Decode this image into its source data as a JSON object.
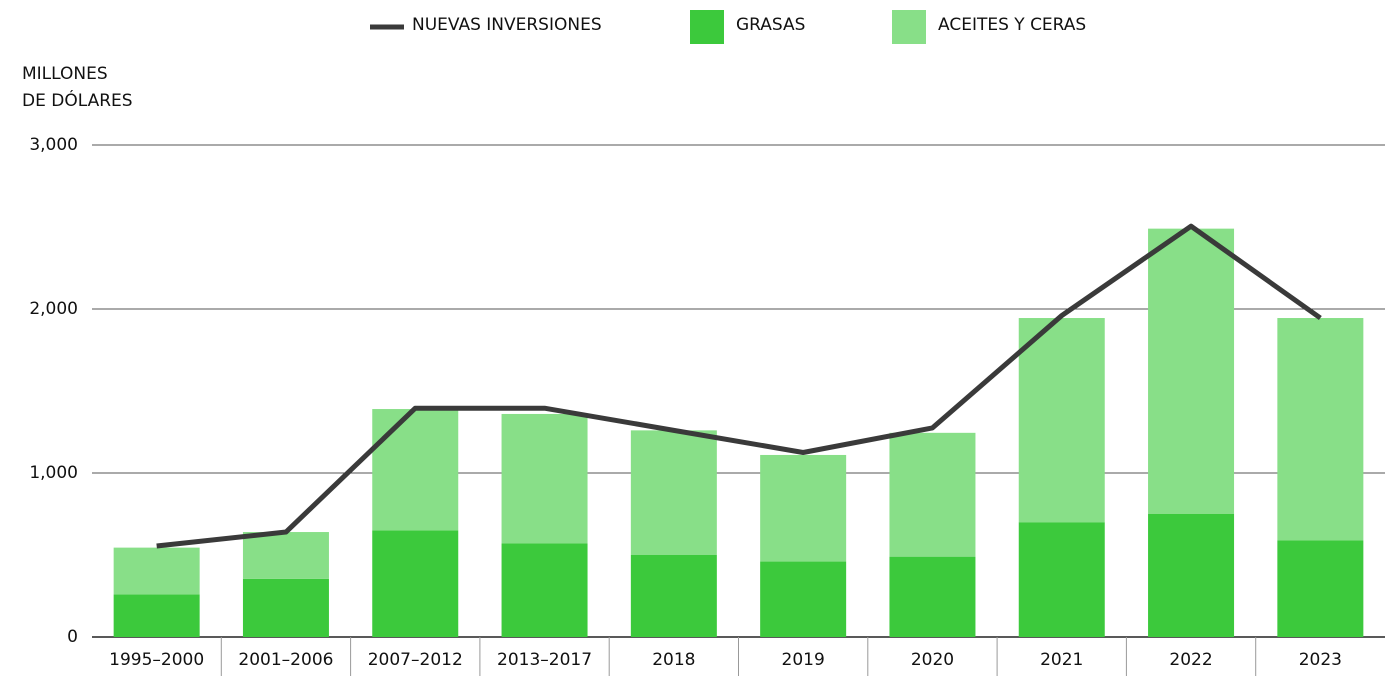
{
  "chart_data": {
    "type": "bar",
    "stacked": true,
    "y_label": [
      "MILLONES",
      "DE DÓLARES"
    ],
    "categories": [
      "1995–2000",
      "2001–2006",
      "2007–2012",
      "2013–2017",
      "2018",
      "2019",
      "2020",
      "2021",
      "2022",
      "2023"
    ],
    "series": [
      {
        "name": "NUEVAS INVERSIONES",
        "type": "line",
        "color": "#3a3a3a",
        "values": [
          555,
          640,
          1395,
          1395,
          1260,
          1125,
          1275,
          1960,
          2505,
          1945
        ]
      },
      {
        "name": "GRASAS",
        "type": "bar",
        "color": "#3cc93c",
        "values": [
          260,
          355,
          650,
          570,
          500,
          460,
          490,
          700,
          750,
          590
        ]
      },
      {
        "name": "ACEITES Y CERAS",
        "type": "bar",
        "color": "#88df88",
        "values": [
          285,
          285,
          740,
          790,
          760,
          650,
          755,
          1245,
          1740,
          1355
        ]
      }
    ],
    "ylim": [
      0,
      3000
    ],
    "yticks": [
      0,
      {
        "value": 1000,
        "label": "1,000"
      },
      {
        "value": 2000,
        "label": "2,000"
      },
      {
        "value": 3000,
        "label": "3,000"
      }
    ],
    "grid": true,
    "legend": "top"
  }
}
